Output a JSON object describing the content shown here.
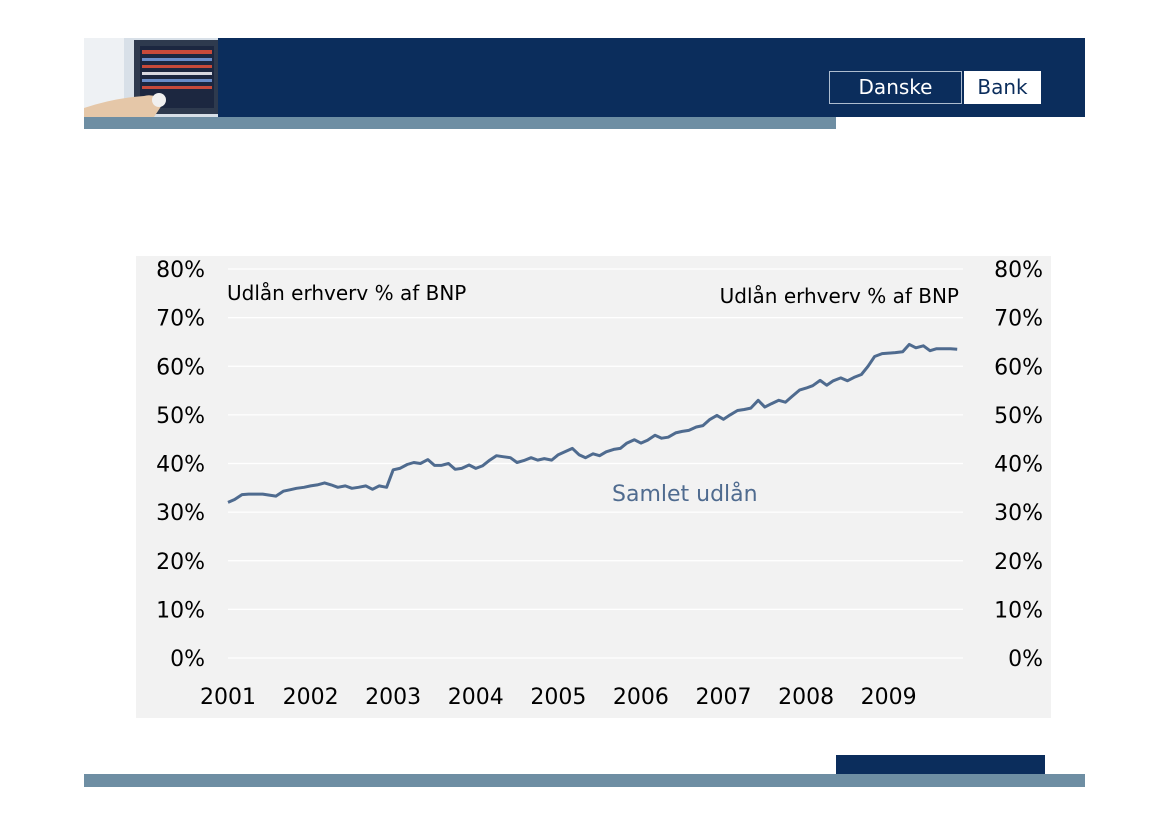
{
  "brand": {
    "logo_left": "Danske",
    "logo_right": "Bank",
    "navy": "#0b2d5c",
    "stripe": "#6e8ea3",
    "line": "#4f6b8f"
  },
  "chart_data": {
    "type": "line",
    "title": "",
    "left_label": "Udlån erhverv % af BNP",
    "right_label": "Udlån erhverv % af BNP",
    "series_annotation": "Samlet udlån",
    "ylim": [
      0,
      80
    ],
    "y_ticks": [
      "0%",
      "10%",
      "20%",
      "30%",
      "40%",
      "50%",
      "60%",
      "70%",
      "80%"
    ],
    "x_ticks": [
      "2001",
      "2002",
      "2003",
      "2004",
      "2005",
      "2006",
      "2007",
      "2008",
      "2009"
    ],
    "xlim": [
      2001,
      2009.9
    ],
    "grid": true,
    "series": [
      {
        "x": [
          2001.0,
          2001.08,
          2001.17,
          2001.25,
          2001.33,
          2001.42,
          2001.5,
          2001.58,
          2001.67,
          2001.75,
          2001.83,
          2001.92,
          2002.0,
          2002.08,
          2002.17,
          2002.25,
          2002.33,
          2002.42,
          2002.5,
          2002.58,
          2002.67,
          2002.75,
          2002.83,
          2002.92,
          2003.0,
          2003.08,
          2003.17,
          2003.25,
          2003.33,
          2003.42,
          2003.5,
          2003.58,
          2003.67,
          2003.75,
          2003.83,
          2003.92,
          2004.0,
          2004.08,
          2004.17,
          2004.25,
          2004.33,
          2004.42,
          2004.5,
          2004.58,
          2004.67,
          2004.75,
          2004.83,
          2004.92,
          2005.0,
          2005.08,
          2005.17,
          2005.25,
          2005.33,
          2005.42,
          2005.5,
          2005.58,
          2005.67,
          2005.75,
          2005.83,
          2005.92,
          2006.0,
          2006.08,
          2006.17,
          2006.25,
          2006.33,
          2006.42,
          2006.5,
          2006.58,
          2006.67,
          2006.75,
          2006.83,
          2006.92,
          2007.0,
          2007.08,
          2007.17,
          2007.25,
          2007.33,
          2007.42,
          2007.5,
          2007.58,
          2007.67,
          2007.75,
          2007.83,
          2007.92,
          2008.0,
          2008.08,
          2008.17,
          2008.25,
          2008.33,
          2008.42,
          2008.5,
          2008.58,
          2008.67,
          2008.75,
          2008.83,
          2008.92,
          2009.0,
          2009.08,
          2009.17,
          2009.25,
          2009.33,
          2009.42,
          2009.5,
          2009.58,
          2009.67,
          2009.75,
          2009.83
        ],
        "values": [
          32.0,
          32.6,
          33.6,
          33.7,
          33.7,
          33.7,
          33.5,
          33.3,
          34.3,
          34.6,
          34.9,
          35.1,
          35.4,
          35.6,
          36.0,
          35.6,
          35.1,
          35.4,
          34.9,
          35.1,
          35.4,
          34.7,
          35.4,
          35.1,
          38.7,
          39.0,
          39.8,
          40.2,
          40.0,
          40.8,
          39.6,
          39.6,
          40.0,
          38.8,
          39.0,
          39.7,
          39.0,
          39.5,
          40.7,
          41.6,
          41.4,
          41.2,
          40.2,
          40.6,
          41.2,
          40.7,
          41.0,
          40.7,
          41.8,
          42.4,
          43.1,
          41.8,
          41.2,
          42.0,
          41.6,
          42.4,
          42.9,
          43.1,
          44.2,
          44.9,
          44.2,
          44.8,
          45.8,
          45.2,
          45.4,
          46.3,
          46.6,
          46.8,
          47.5,
          47.8,
          49.0,
          49.9,
          49.1,
          50.0,
          50.9,
          51.1,
          51.4,
          53.0,
          51.6,
          52.3,
          53.0,
          52.6,
          53.8,
          55.1,
          55.5,
          56.0,
          57.1,
          56.1,
          57.0,
          57.6,
          57.0,
          57.7,
          58.3,
          60.0,
          62.0,
          62.6,
          62.7,
          62.8,
          63.0,
          64.5,
          63.8,
          64.2,
          63.2,
          63.6,
          63.6,
          63.6,
          63.5
        ]
      }
    ]
  }
}
